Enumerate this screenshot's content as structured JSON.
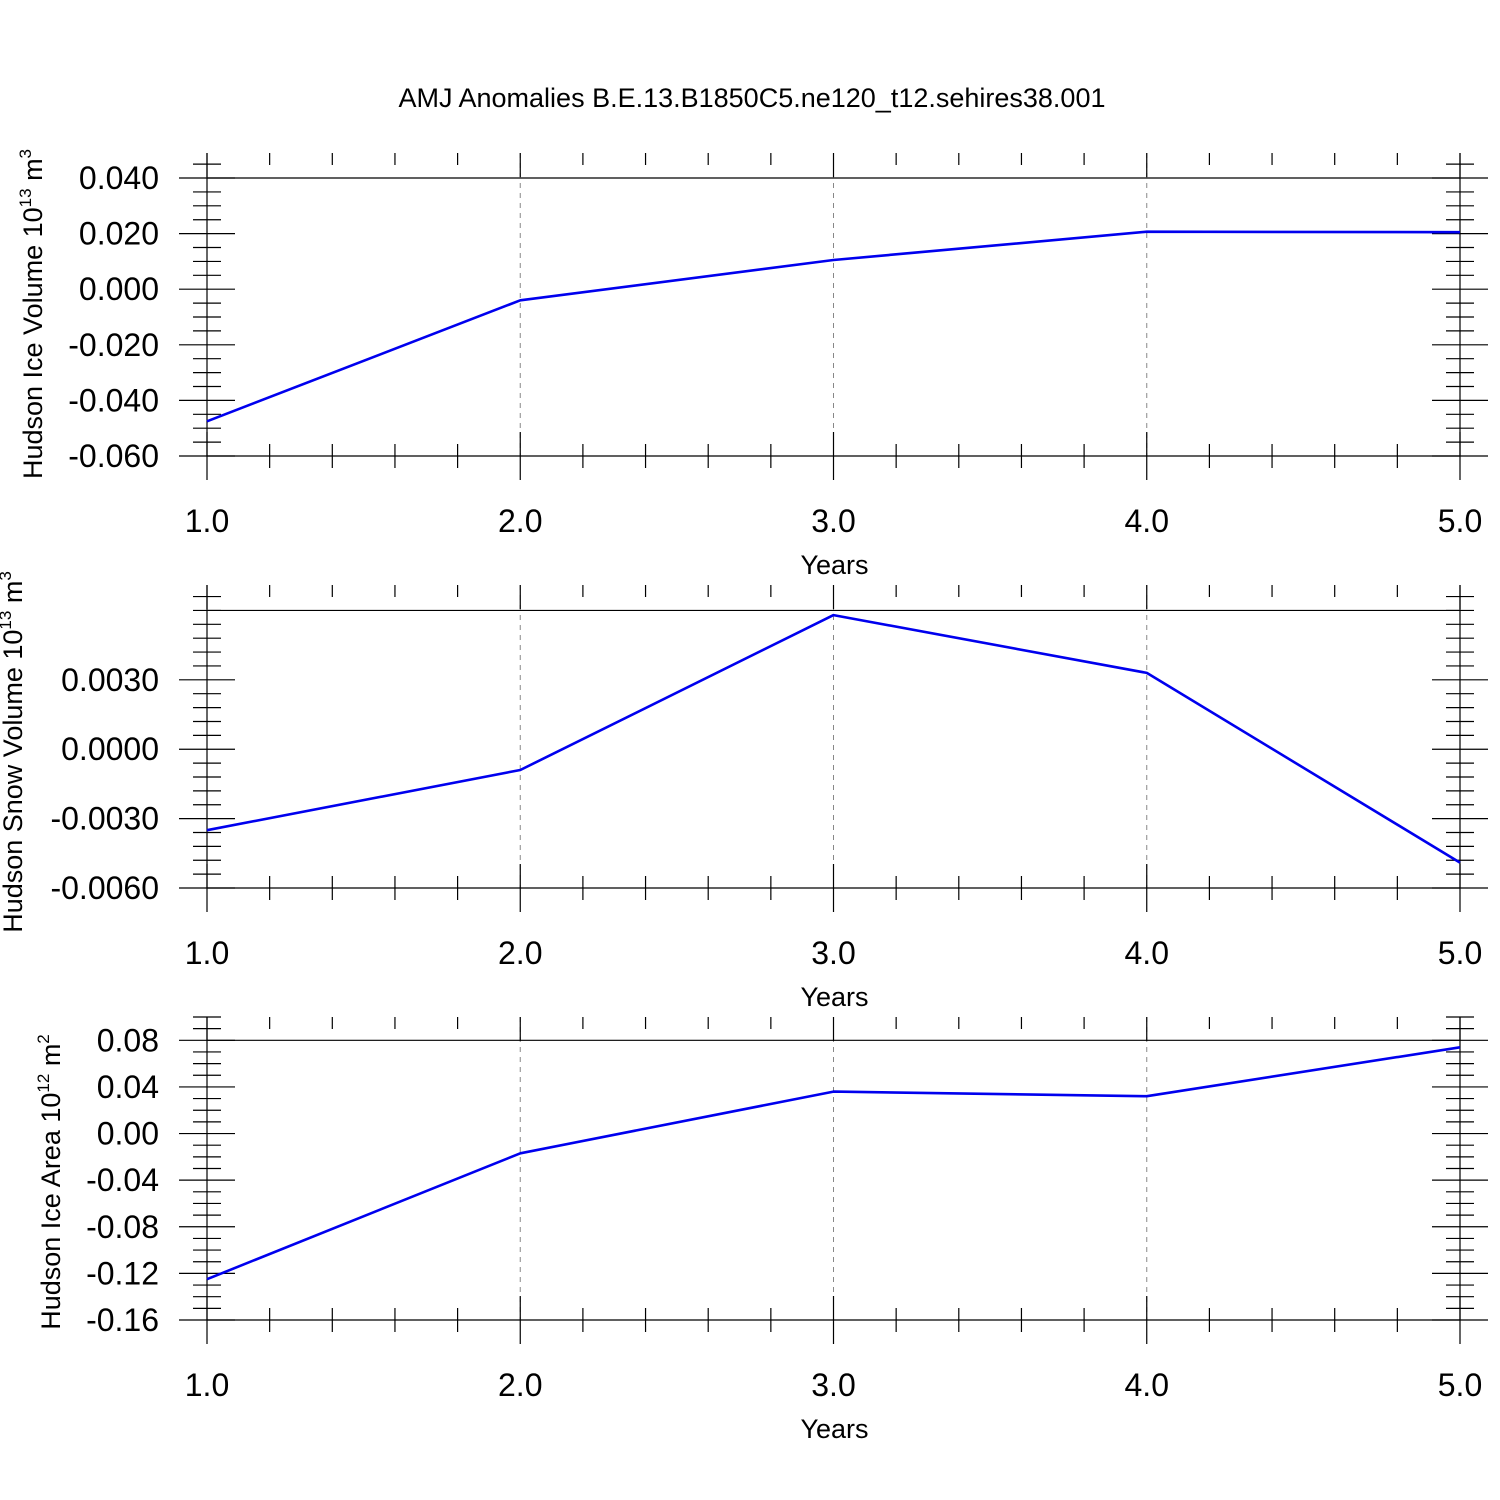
{
  "title": "AMJ Anomalies B.E.13.B1850C5.ne120_t12.sehires38.001",
  "colors": {
    "series": "#0000ee",
    "axis": "#000000",
    "grid": "#888888"
  },
  "chart_data": [
    {
      "type": "line",
      "title": "AMJ Anomalies B.E.13.B1850C5.ne120_t12.sehires38.001",
      "ylabel": "Hudson Ice Volume 10",
      "ylabel_exp": "13",
      "ylabel_unit": " m",
      "ylabel_unit_exp": "3",
      "xlabel": "Years",
      "x": [
        1.0,
        2.0,
        3.0,
        4.0,
        5.0
      ],
      "values": [
        -0.0475,
        -0.004,
        0.0105,
        0.0207,
        0.0205
      ],
      "xlim": [
        1.0,
        5.0
      ],
      "ylim": [
        -0.06,
        0.049
      ],
      "yticks": [
        -0.06,
        -0.04,
        -0.02,
        0.0,
        0.02,
        0.04
      ],
      "ytick_labels": [
        "-0.060",
        "-0.040",
        "-0.020",
        "0.000",
        "0.020",
        "0.040"
      ],
      "xticks": [
        1.0,
        2.0,
        3.0,
        4.0,
        5.0
      ],
      "xtick_labels": [
        "1.0",
        "2.0",
        "3.0",
        "4.0",
        "5.0"
      ],
      "ref_line": 0.04,
      "minor_y_step": 0.005,
      "grid": "vertical dashed"
    },
    {
      "type": "line",
      "ylabel": "Hudson Snow Volume 10",
      "ylabel_exp": "13",
      "ylabel_unit": " m",
      "ylabel_unit_exp": "3",
      "xlabel": "Years",
      "x": [
        1.0,
        2.0,
        3.0,
        4.0,
        5.0
      ],
      "values": [
        -0.0035,
        -0.0009,
        0.0058,
        0.0033,
        -0.0049
      ],
      "xlim": [
        1.0,
        5.0
      ],
      "ylim": [
        -0.006,
        0.0071
      ],
      "yticks": [
        -0.006,
        -0.003,
        0.0,
        0.003
      ],
      "ytick_labels": [
        "-0.0060",
        "-0.0030",
        "0.0000",
        "0.0030"
      ],
      "xticks": [
        1.0,
        2.0,
        3.0,
        4.0,
        5.0
      ],
      "xtick_labels": [
        "1.0",
        "2.0",
        "3.0",
        "4.0",
        "5.0"
      ],
      "ref_line": 0.006,
      "minor_y_step": 0.0006,
      "grid": "vertical dashed"
    },
    {
      "type": "line",
      "ylabel": "Hudson Ice Area 10",
      "ylabel_exp": "12",
      "ylabel_unit": " m",
      "ylabel_unit_exp": "2",
      "xlabel": "Years",
      "x": [
        1.0,
        2.0,
        3.0,
        4.0,
        5.0
      ],
      "values": [
        -0.125,
        -0.017,
        0.036,
        0.032,
        0.074
      ],
      "xlim": [
        1.0,
        5.0
      ],
      "ylim": [
        -0.16,
        0.1
      ],
      "yticks": [
        -0.16,
        -0.12,
        -0.08,
        -0.04,
        0.0,
        0.04,
        0.08
      ],
      "ytick_labels": [
        "-0.16",
        "-0.12",
        "-0.08",
        "-0.04",
        "0.00",
        "0.04",
        "0.08"
      ],
      "xticks": [
        1.0,
        2.0,
        3.0,
        4.0,
        5.0
      ],
      "xtick_labels": [
        "1.0",
        "2.0",
        "3.0",
        "4.0",
        "5.0"
      ],
      "ref_line": 0.08,
      "minor_y_step": 0.01,
      "grid": "vertical dashed"
    }
  ]
}
